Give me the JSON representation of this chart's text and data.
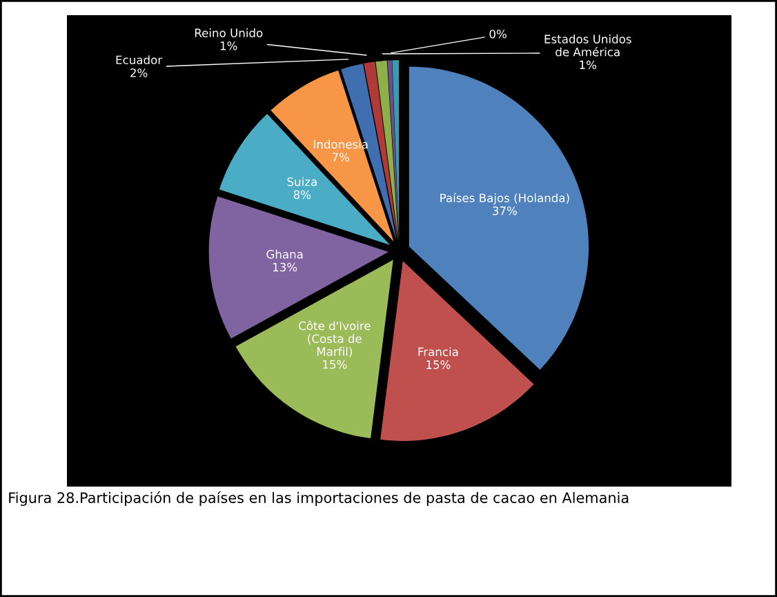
{
  "chart_data": {
    "type": "pie",
    "categories": [
      "Países Bajos (Holanda)",
      "Francia",
      "Côte d'Ivoire (Costa de Marfil)",
      "Ghana",
      "Suiza",
      "Indonesia",
      "Ecuador",
      "Reino Unido",
      "Estados Unidos de América",
      null,
      null
    ],
    "values": [
      37,
      15,
      15,
      13,
      8,
      7,
      2,
      1,
      1,
      0.4,
      0.6
    ],
    "value_labels": [
      "37%",
      "15%",
      "15%",
      "13%",
      "8%",
      "7%",
      "2%",
      "1%",
      "1%",
      "0%",
      null
    ],
    "colors": [
      "#4f81bd",
      "#c0504d",
      "#9bbb59",
      "#8064a2",
      "#4bacc6",
      "#f79646",
      "#3f6fb0",
      "#b03a37",
      "#8db04a",
      "#6a4f8c",
      "#3a9ab3"
    ],
    "legend": false,
    "annotations": [
      "Figura 28.Participación de países en las importaciones de pasta de cacao en Alemania"
    ]
  }
}
